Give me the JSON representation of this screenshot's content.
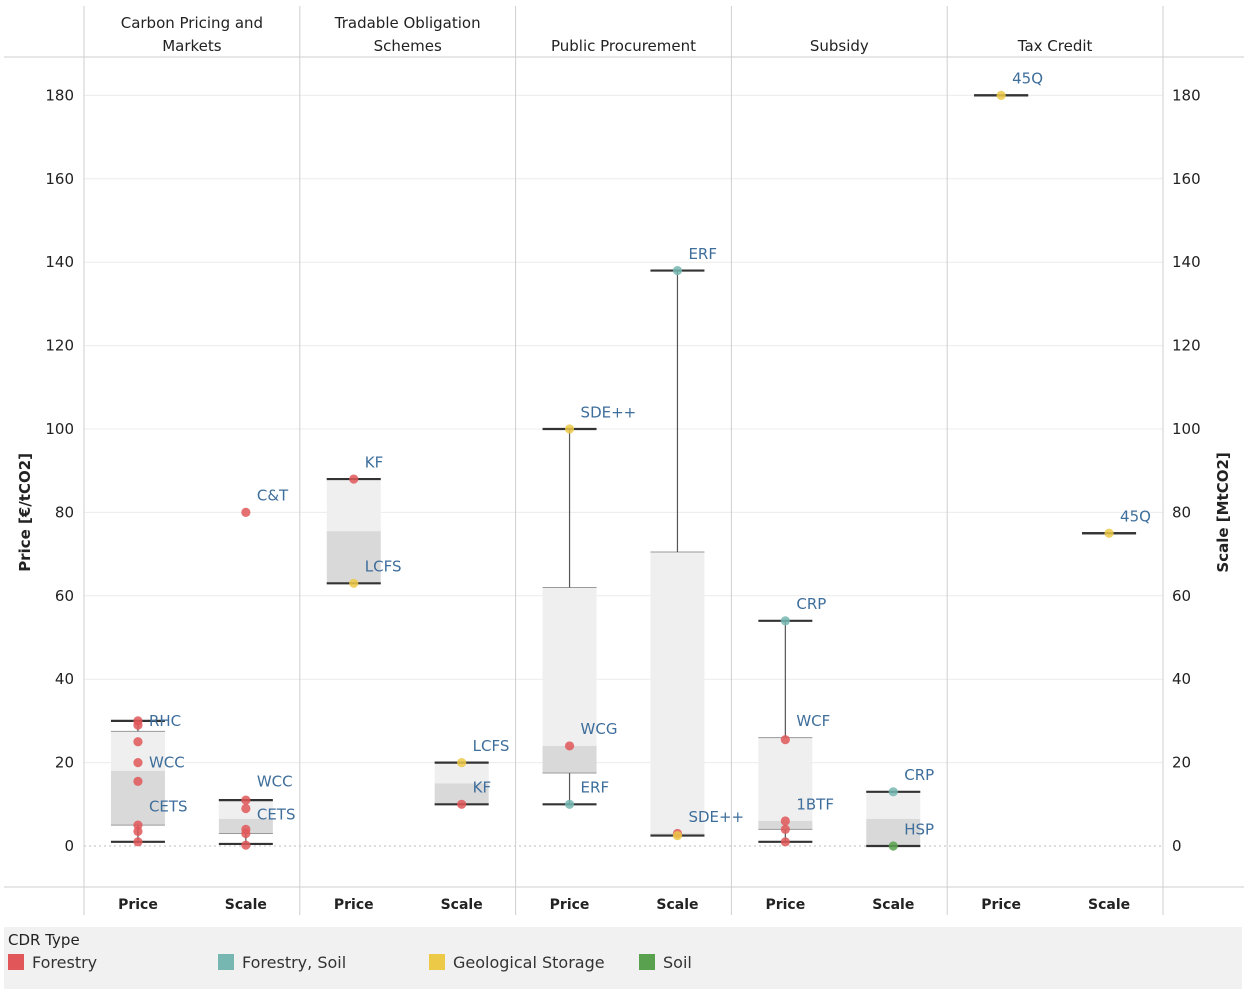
{
  "chart_data": {
    "type": "box",
    "y_left_label": "Price [€/tCO2]",
    "y_right_label": "Scale [MtCO2]",
    "y_ticks": [
      0,
      20,
      40,
      60,
      80,
      100,
      120,
      140,
      160,
      180
    ],
    "ylim": [
      -10,
      190
    ],
    "measures": [
      "Price",
      "Scale"
    ],
    "colors": {
      "Forestry": "#e15759",
      "Forestry, Soil": "#76b7b2",
      "Geological Storage": "#edc948",
      "Soil": "#59a14f",
      "label": "#3e6e9b",
      "box_light": "#efefef",
      "box_dark": "#d9d9d9",
      "whisker": "#555555",
      "cap": "#333333"
    },
    "legend_title": "CDR Type",
    "legend": [
      "Forestry",
      "Forestry, Soil",
      "Geological Storage",
      "Soil"
    ],
    "panels": [
      {
        "title": [
          "Carbon Pricing and",
          "Markets"
        ],
        "groups": [
          {
            "measure": "Price",
            "min": 1,
            "q1": 5,
            "median": 18,
            "q3": 27.5,
            "max": 30,
            "points": [
              {
                "v": 30,
                "t": "Forestry"
              },
              {
                "v": 29,
                "t": "Forestry"
              },
              {
                "v": 25,
                "t": "Forestry"
              },
              {
                "v": 20,
                "t": "Forestry"
              },
              {
                "v": 15.5,
                "t": "Forestry"
              },
              {
                "v": 5,
                "t": "Forestry"
              },
              {
                "v": 3.5,
                "t": "Forestry"
              },
              {
                "v": 1,
                "t": "Forestry"
              }
            ],
            "labels": [
              {
                "text": "RHC",
                "v": 30
              },
              {
                "text": "WCC",
                "v": 20
              },
              {
                "text": "CETS",
                "v": 9.5
              }
            ]
          },
          {
            "measure": "Scale",
            "min": 0.5,
            "q1": 3,
            "median": 6.5,
            "q3": 11,
            "max": 11,
            "points": [
              {
                "v": 80,
                "t": "Forestry"
              },
              {
                "v": 11,
                "t": "Forestry"
              },
              {
                "v": 9,
                "t": "Forestry"
              },
              {
                "v": 4,
                "t": "Forestry"
              },
              {
                "v": 3,
                "t": "Forestry"
              },
              {
                "v": 0.2,
                "t": "Forestry"
              }
            ],
            "labels": [
              {
                "text": "C&T",
                "v": 84
              },
              {
                "text": "WCC",
                "v": 15.5
              },
              {
                "text": "CETS",
                "v": 7.5
              }
            ]
          }
        ]
      },
      {
        "title": [
          "Tradable Obligation",
          "Schemes"
        ],
        "groups": [
          {
            "measure": "Price",
            "min": 63,
            "q1": 63,
            "median": 75.5,
            "q3": 88,
            "max": 88,
            "points": [
              {
                "v": 88,
                "t": "Forestry"
              },
              {
                "v": 63,
                "t": "Geological Storage"
              }
            ],
            "labels": [
              {
                "text": "KF",
                "v": 92
              },
              {
                "text": "LCFS",
                "v": 67
              }
            ]
          },
          {
            "measure": "Scale",
            "min": 10,
            "q1": 10,
            "median": 15,
            "q3": 20,
            "max": 20,
            "points": [
              {
                "v": 20,
                "t": "Geological Storage"
              },
              {
                "v": 10,
                "t": "Forestry"
              }
            ],
            "labels": [
              {
                "text": "LCFS",
                "v": 24
              },
              {
                "text": "KF",
                "v": 14
              }
            ]
          }
        ]
      },
      {
        "title": [
          "Public Procurement"
        ],
        "groups": [
          {
            "measure": "Price",
            "min": 10,
            "q1": 17.5,
            "median": 24,
            "q3": 62,
            "max": 100,
            "points": [
              {
                "v": 100,
                "t": "Geological Storage"
              },
              {
                "v": 24,
                "t": "Forestry"
              },
              {
                "v": 10,
                "t": "Forestry, Soil"
              }
            ],
            "labels": [
              {
                "text": "SDE++",
                "v": 104
              },
              {
                "text": "WCG",
                "v": 28
              },
              {
                "text": "ERF",
                "v": 14
              }
            ]
          },
          {
            "measure": "Scale",
            "min": 2.5,
            "q1": 2.5,
            "median": 3,
            "q3": 70.5,
            "max": 138,
            "points": [
              {
                "v": 138,
                "t": "Forestry, Soil"
              },
              {
                "v": 3,
                "t": "Forestry"
              },
              {
                "v": 2.5,
                "t": "Geological Storage"
              }
            ],
            "labels": [
              {
                "text": "ERF",
                "v": 142
              },
              {
                "text": "SDE++",
                "v": 7
              }
            ]
          }
        ]
      },
      {
        "title": [
          "Subsidy"
        ],
        "groups": [
          {
            "measure": "Price",
            "min": 1,
            "q1": 4,
            "median": 6,
            "q3": 26,
            "max": 54,
            "points": [
              {
                "v": 54,
                "t": "Forestry, Soil"
              },
              {
                "v": 25.5,
                "t": "Forestry"
              },
              {
                "v": 6,
                "t": "Forestry"
              },
              {
                "v": 4,
                "t": "Forestry"
              },
              {
                "v": 1,
                "t": "Forestry"
              }
            ],
            "labels": [
              {
                "text": "CRP",
                "v": 58
              },
              {
                "text": "WCF",
                "v": 30
              },
              {
                "text": "1BTF",
                "v": 10
              }
            ]
          },
          {
            "measure": "Scale",
            "min": 0,
            "q1": 0,
            "median": 6.5,
            "q3": 13,
            "max": 13,
            "points": [
              {
                "v": 13,
                "t": "Forestry, Soil"
              },
              {
                "v": 0,
                "t": "Soil"
              }
            ],
            "labels": [
              {
                "text": "CRP",
                "v": 17
              },
              {
                "text": "HSP",
                "v": 4
              }
            ]
          }
        ]
      },
      {
        "title": [
          "Tax Credit"
        ],
        "groups": [
          {
            "measure": "Price",
            "min": 180,
            "q1": 180,
            "median": 180,
            "q3": 180,
            "max": 180,
            "points": [
              {
                "v": 180,
                "t": "Geological Storage"
              }
            ],
            "labels": [
              {
                "text": "45Q",
                "v": 184
              }
            ]
          },
          {
            "measure": "Scale",
            "min": 75,
            "q1": 75,
            "median": 75,
            "q3": 75,
            "max": 75,
            "points": [
              {
                "v": 75,
                "t": "Geological Storage"
              }
            ],
            "labels": [
              {
                "text": "45Q",
                "v": 79
              }
            ]
          }
        ]
      }
    ]
  }
}
